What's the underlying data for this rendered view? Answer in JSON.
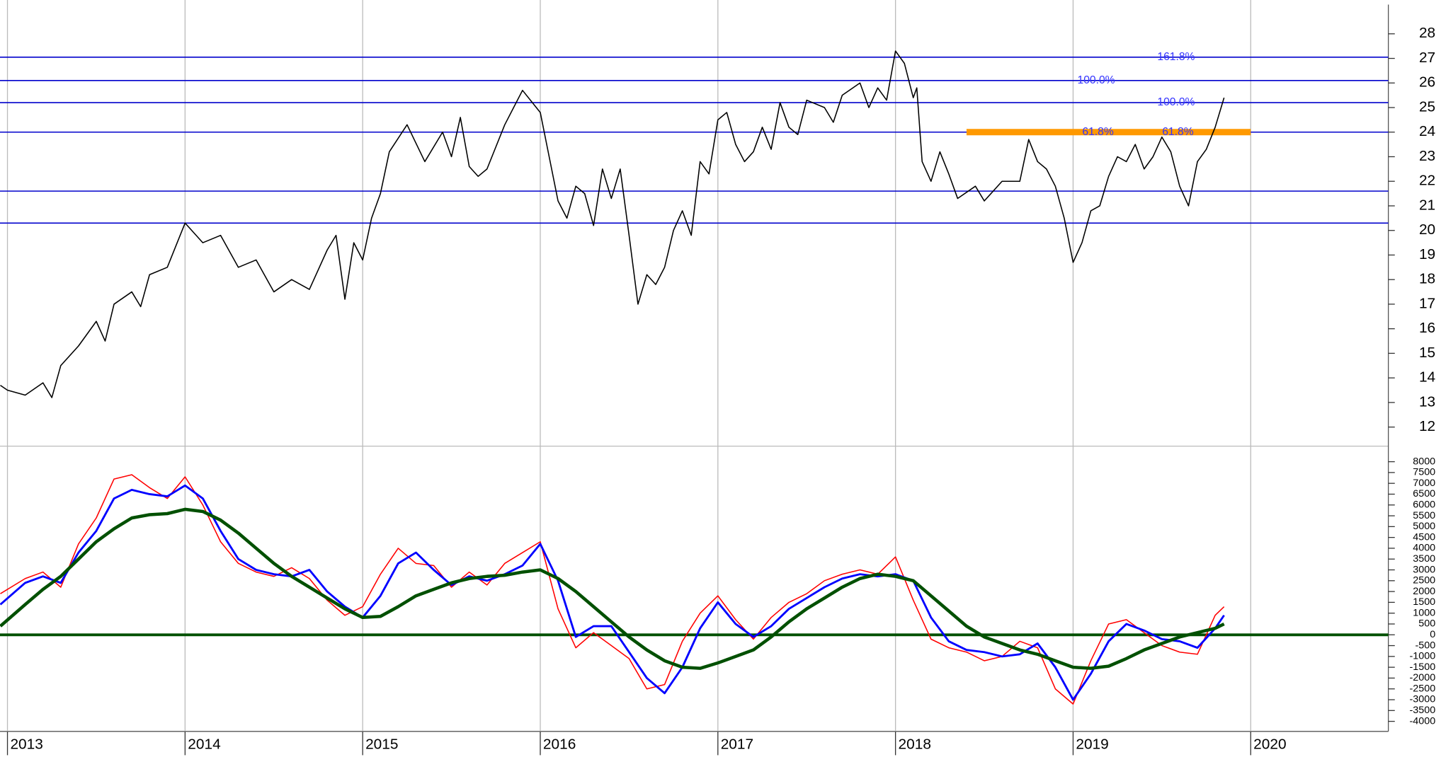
{
  "chart_data": [
    {
      "type": "line",
      "x": [
        2012.96,
        2013.0,
        2013.1,
        2013.2,
        2013.25,
        2013.3,
        2013.4,
        2013.45,
        2013.5,
        2013.55,
        2013.6,
        2013.7,
        2013.75,
        2013.8,
        2013.9,
        2014.0,
        2014.1,
        2014.2,
        2014.3,
        2014.4,
        2014.5,
        2014.6,
        2014.7,
        2014.8,
        2014.85,
        2014.9,
        2014.95,
        2015.0,
        2015.05,
        2015.1,
        2015.15,
        2015.25,
        2015.35,
        2015.45,
        2015.5,
        2015.55,
        2015.6,
        2015.65,
        2015.7,
        2015.8,
        2015.85,
        2015.9,
        2016.0,
        2016.05,
        2016.1,
        2016.15,
        2016.2,
        2016.25,
        2016.3,
        2016.35,
        2016.4,
        2016.45,
        2016.5,
        2016.55,
        2016.6,
        2016.65,
        2016.7,
        2016.75,
        2016.8,
        2016.85,
        2016.9,
        2016.95,
        2017.0,
        2017.05,
        2017.1,
        2017.15,
        2017.2,
        2017.25,
        2017.3,
        2017.35,
        2017.4,
        2017.45,
        2017.5,
        2017.6,
        2017.65,
        2017.7,
        2017.8,
        2017.85,
        2017.9,
        2017.95,
        2018.0,
        2018.05,
        2018.1,
        2018.12,
        2018.15,
        2018.2,
        2018.25,
        2018.3,
        2018.35,
        2018.45,
        2018.5,
        2018.6,
        2018.7,
        2018.75,
        2018.8,
        2018.85,
        2018.9,
        2018.95,
        2019.0,
        2019.05,
        2019.1,
        2019.15,
        2019.2,
        2019.25,
        2019.3,
        2019.35,
        2019.4,
        2019.45,
        2019.5,
        2019.55,
        2019.6,
        2019.65,
        2019.7,
        2019.75,
        2019.8,
        2019.85
      ],
      "values": [
        13.7,
        13.5,
        13.3,
        13.8,
        13.2,
        14.5,
        15.3,
        15.8,
        16.3,
        15.5,
        17.0,
        17.5,
        16.9,
        18.2,
        18.5,
        20.3,
        19.5,
        19.8,
        18.5,
        18.8,
        17.5,
        18.0,
        17.6,
        19.2,
        19.8,
        17.2,
        19.5,
        18.8,
        20.5,
        21.5,
        23.2,
        24.3,
        22.8,
        24.0,
        23.0,
        24.6,
        22.6,
        22.2,
        22.5,
        24.3,
        25.0,
        25.7,
        24.8,
        23.0,
        21.2,
        20.5,
        21.8,
        21.5,
        20.2,
        22.5,
        21.3,
        22.5,
        19.8,
        17.0,
        18.2,
        17.8,
        18.5,
        20.0,
        20.8,
        19.8,
        22.8,
        22.3,
        24.5,
        24.8,
        23.5,
        22.8,
        23.2,
        24.2,
        23.3,
        25.2,
        24.2,
        23.9,
        25.3,
        25.0,
        24.4,
        25.5,
        26.0,
        25.0,
        25.8,
        25.3,
        27.3,
        26.8,
        25.4,
        25.8,
        22.8,
        22.0,
        23.2,
        22.3,
        21.3,
        21.8,
        21.2,
        22.0,
        22.0,
        23.7,
        22.8,
        22.5,
        21.8,
        20.5,
        18.7,
        19.5,
        20.8,
        21.0,
        22.2,
        23.0,
        22.8,
        23.5,
        22.5,
        23.0,
        23.8,
        23.2,
        21.8,
        21.0,
        22.8,
        23.3,
        24.2,
        25.4
      ],
      "color": "#000000",
      "xlim": [
        2012.958,
        2020.775
      ],
      "xticks": [
        2013,
        2014,
        2015,
        2016,
        2017,
        2018,
        2019,
        2020
      ],
      "ylim": [
        11.26,
        29.19
      ],
      "yticks": [
        12,
        13,
        14,
        15,
        16,
        17,
        18,
        19,
        20,
        21,
        22,
        23,
        24,
        25,
        26,
        27,
        28
      ],
      "hlines": [
        27.05,
        26.1,
        25.2,
        24.0,
        21.6,
        20.3
      ],
      "hline_color": "#0000cc",
      "band": {
        "y": 24.0,
        "x": [
          2018.4,
          2020.0
        ],
        "color": "#ff9900"
      },
      "annotations": [
        {
          "text": "161.8%",
          "x": 2019.58,
          "y": 27.05
        },
        {
          "text": "100.0%",
          "x": 2019.13,
          "y": 26.1
        },
        {
          "text": "100.0%",
          "x": 2019.58,
          "y": 25.2
        },
        {
          "text": "61.8%",
          "x": 2019.14,
          "y": 24.0
        },
        {
          "text": "61.8%",
          "x": 2019.59,
          "y": 24.0
        }
      ],
      "annotation_color": "#3333ff",
      "grid": true
    },
    {
      "type": "line",
      "x": [
        2012.96,
        2013.1,
        2013.2,
        2013.3,
        2013.4,
        2013.5,
        2013.6,
        2013.7,
        2013.8,
        2013.9,
        2014.0,
        2014.1,
        2014.2,
        2014.3,
        2014.4,
        2014.5,
        2014.6,
        2014.7,
        2014.8,
        2014.9,
        2015.0,
        2015.1,
        2015.2,
        2015.3,
        2015.4,
        2015.5,
        2015.6,
        2015.7,
        2015.8,
        2015.9,
        2016.0,
        2016.1,
        2016.2,
        2016.3,
        2016.4,
        2016.5,
        2016.6,
        2016.7,
        2016.8,
        2016.9,
        2017.0,
        2017.1,
        2017.2,
        2017.3,
        2017.4,
        2017.5,
        2017.6,
        2017.7,
        2017.8,
        2017.9,
        2018.0,
        2018.1,
        2018.2,
        2018.3,
        2018.4,
        2018.5,
        2018.6,
        2018.7,
        2018.8,
        2018.9,
        2019.0,
        2019.1,
        2019.2,
        2019.3,
        2019.4,
        2019.5,
        2019.6,
        2019.7,
        2019.8,
        2019.85
      ],
      "series": [
        {
          "color": "#ff0000",
          "values": [
            1900,
            2600,
            2900,
            2200,
            4200,
            5400,
            7200,
            7400,
            6800,
            6300,
            7300,
            6000,
            4300,
            3300,
            2900,
            2700,
            3100,
            2600,
            1600,
            900,
            1300,
            2800,
            4000,
            3300,
            3200,
            2200,
            2900,
            2300,
            3300,
            3800,
            4300,
            1200,
            -600,
            100,
            -500,
            -1100,
            -2500,
            -2300,
            -300,
            1000,
            1800,
            700,
            -200,
            800,
            1500,
            1900,
            2500,
            2800,
            3000,
            2800,
            3600,
            1600,
            -200,
            -600,
            -800,
            -1200,
            -1000,
            -300,
            -600,
            -2500,
            -3200,
            -1200,
            500,
            700,
            100,
            -500,
            -800,
            -900,
            900,
            1300
          ]
        },
        {
          "color": "#0000ff",
          "values": [
            1400,
            2400,
            2700,
            2400,
            3800,
            4800,
            6300,
            6700,
            6500,
            6400,
            6900,
            6300,
            4800,
            3500,
            3000,
            2800,
            2700,
            3000,
            2000,
            1300,
            800,
            1800,
            3300,
            3800,
            3000,
            2300,
            2700,
            2500,
            2800,
            3200,
            4200,
            2500,
            -100,
            400,
            400,
            -800,
            -2000,
            -2700,
            -1500,
            300,
            1500,
            500,
            -100,
            400,
            1200,
            1700,
            2200,
            2600,
            2800,
            2700,
            2800,
            2500,
            800,
            -300,
            -700,
            -800,
            -1000,
            -900,
            -400,
            -1500,
            -3000,
            -1800,
            -300,
            500,
            200,
            -200,
            -300,
            -600,
            300,
            900
          ]
        },
        {
          "color": "#005000",
          "values": [
            400,
            1400,
            2100,
            2700,
            3500,
            4300,
            4900,
            5400,
            5550,
            5600,
            5800,
            5700,
            5300,
            4700,
            4000,
            3300,
            2700,
            2200,
            1700,
            1200,
            800,
            850,
            1300,
            1800,
            2100,
            2400,
            2600,
            2700,
            2750,
            2900,
            3000,
            2600,
            2000,
            1300,
            600,
            -100,
            -700,
            -1200,
            -1500,
            -1550,
            -1300,
            -1000,
            -700,
            -100,
            600,
            1200,
            1700,
            2200,
            2600,
            2800,
            2700,
            2500,
            1800,
            1100,
            400,
            -100,
            -400,
            -700,
            -900,
            -1200,
            -1500,
            -1550,
            -1450,
            -1100,
            -700,
            -400,
            -100,
            100,
            300,
            500
          ]
        }
      ],
      "xlim": [
        2012.958,
        2020.775
      ],
      "xticks": [
        2013,
        2014,
        2015,
        2016,
        2017,
        2018,
        2019,
        2020
      ],
      "ylim": [
        -4465,
        8634
      ],
      "yticks": [
        -4000,
        -3500,
        -3000,
        -2500,
        -2000,
        -1500,
        -1000,
        -500,
        0,
        500,
        1000,
        1500,
        2000,
        2500,
        3000,
        3500,
        4000,
        4500,
        5000,
        5500,
        6000,
        6500,
        7000,
        7500,
        8000
      ],
      "hlines": [
        0
      ],
      "hline_color": "#005000",
      "grid": true
    }
  ]
}
